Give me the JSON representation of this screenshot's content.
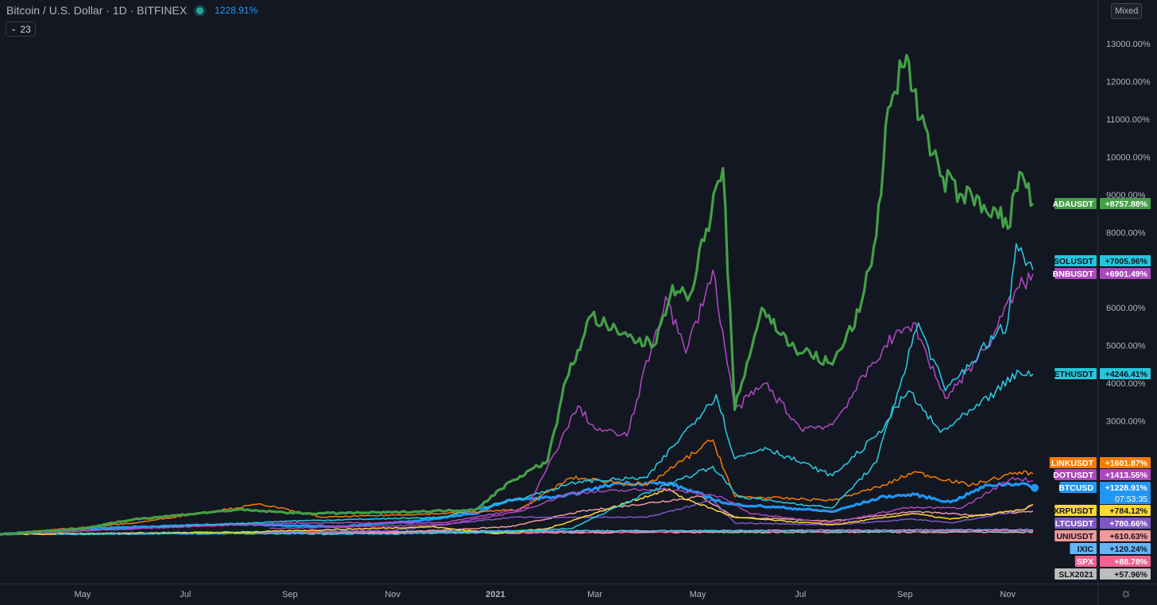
{
  "header": {
    "title": "Bitcoin / U.S. Dollar · 1D · BITFINEX",
    "change": "1228.91%",
    "indicator_count": "23",
    "scale_mode": "Mixed"
  },
  "chart_data": {
    "type": "line",
    "x_tick_labels": [
      "May",
      "Jul",
      "Sep",
      "Nov",
      "2021",
      "Mar",
      "May",
      "Jul",
      "Sep",
      "Nov"
    ],
    "y_tick_labels": [
      "3000.00%",
      "4000.00%",
      "5000.00%",
      "6000.00%",
      "8000.00%",
      "9000.00%",
      "10000.00%",
      "11000.00%",
      "12000.00%",
      "13000.00%"
    ],
    "y_ticks": [
      3000,
      4000,
      5000,
      6000,
      8000,
      9000,
      10000,
      11000,
      12000,
      13000
    ],
    "ylim": [
      -500,
      14000
    ],
    "x_range": [
      "2020-03-13",
      "2021-11-16"
    ],
    "grid": false,
    "countdown": "07:53:35",
    "series": [
      {
        "name": "ADAUSDT",
        "label": "+8757.88%",
        "color": "#43a047",
        "width": 3.2,
        "x": [
          "2020-03-13",
          "2020-05-01",
          "2020-06-01",
          "2020-08-01",
          "2020-09-10",
          "2020-11-01",
          "2020-12-20",
          "2021-01-10",
          "2021-02-01",
          "2021-02-12",
          "2021-02-27",
          "2021-03-15",
          "2021-04-05",
          "2021-04-16",
          "2021-04-25",
          "2021-05-16",
          "2021-05-23",
          "2021-06-08",
          "2021-06-25",
          "2021-07-20",
          "2021-08-05",
          "2021-08-15",
          "2021-08-22",
          "2021-09-02",
          "2021-09-10",
          "2021-09-22",
          "2021-10-05",
          "2021-10-25",
          "2021-11-01",
          "2021-11-08",
          "2021-11-16"
        ],
        "y": [
          0,
          150,
          400,
          650,
          550,
          580,
          650,
          1400,
          1950,
          4100,
          5800,
          5300,
          5000,
          6600,
          6200,
          9700,
          3300,
          6000,
          5000,
          4500,
          5900,
          7900,
          11300,
          12700,
          11000,
          9500,
          9000,
          8600,
          8100,
          9600,
          8758
        ]
      },
      {
        "name": "SOLUSDT",
        "label": "+7005.96%",
        "color": "#26c6da",
        "width": 1.6,
        "x": [
          "2020-04-15",
          "2020-08-01",
          "2020-11-01",
          "2021-01-01",
          "2021-02-15",
          "2021-04-01",
          "2021-05-10",
          "2021-05-25",
          "2021-06-20",
          "2021-07-20",
          "2021-08-15",
          "2021-09-09",
          "2021-09-25",
          "2021-10-15",
          "2021-11-01",
          "2021-11-06",
          "2021-11-16"
        ],
        "y": [
          0,
          20,
          10,
          60,
          150,
          1100,
          1800,
          1000,
          850,
          700,
          1900,
          5600,
          3800,
          4800,
          5600,
          7700,
          7006
        ]
      },
      {
        "name": "BNBUSDT",
        "label": "+6901.49%",
        "color": "#ab47bc",
        "width": 1.6,
        "x": [
          "2020-03-13",
          "2020-06-01",
          "2020-09-01",
          "2020-12-01",
          "2021-01-20",
          "2021-02-19",
          "2021-03-01",
          "2021-03-20",
          "2021-04-12",
          "2021-04-24",
          "2021-05-10",
          "2021-05-23",
          "2021-06-10",
          "2021-07-01",
          "2021-07-20",
          "2021-08-20",
          "2021-09-06",
          "2021-09-25",
          "2021-10-20",
          "2021-11-05",
          "2021-11-16"
        ],
        "y": [
          0,
          150,
          300,
          300,
          700,
          3400,
          2800,
          2600,
          6300,
          4800,
          7000,
          3300,
          4000,
          2800,
          2900,
          5000,
          5600,
          3600,
          5000,
          6400,
          6901
        ]
      },
      {
        "name": "ETHUSDT",
        "label": "+4246.41%",
        "color": "#26c6da",
        "width": 1.6,
        "x": [
          "2020-03-13",
          "2020-06-01",
          "2020-09-01",
          "2020-12-01",
          "2021-01-20",
          "2021-02-20",
          "2021-04-01",
          "2021-05-12",
          "2021-05-23",
          "2021-06-10",
          "2021-07-20",
          "2021-08-15",
          "2021-09-03",
          "2021-09-22",
          "2021-10-15",
          "2021-11-08",
          "2021-11-16"
        ],
        "y": [
          0,
          150,
          350,
          450,
          1000,
          1400,
          1500,
          3700,
          2000,
          2300,
          1550,
          2600,
          3800,
          2700,
          3400,
          4300,
          4246
        ]
      },
      {
        "name": "LINKUSDT",
        "label": "+1601.87%",
        "color": "#f57c00",
        "width": 1.5,
        "x": [
          "2020-03-13",
          "2020-06-01",
          "2020-08-15",
          "2020-09-20",
          "2020-12-01",
          "2021-01-15",
          "2021-02-15",
          "2021-04-01",
          "2021-05-10",
          "2021-05-23",
          "2021-07-20",
          "2021-08-20",
          "2021-09-06",
          "2021-10-10",
          "2021-11-08",
          "2021-11-16"
        ],
        "y": [
          0,
          300,
          800,
          450,
          550,
          650,
          1500,
          1300,
          2500,
          1000,
          900,
          1300,
          1650,
          1300,
          1650,
          1602
        ]
      },
      {
        "name": "DOTUSDT",
        "label": "+1413.55%",
        "color": "#ab47bc",
        "width": 1.5,
        "x": [
          "2020-08-20",
          "2020-10-01",
          "2020-12-01",
          "2021-01-15",
          "2021-02-15",
          "2021-04-10",
          "2021-05-15",
          "2021-06-01",
          "2021-07-20",
          "2021-09-01",
          "2021-10-05",
          "2021-11-04",
          "2021-11-16"
        ],
        "y": [
          150,
          200,
          250,
          600,
          1100,
          1200,
          1000,
          550,
          300,
          700,
          700,
          1500,
          1414
        ]
      },
      {
        "name": "BTCUSD",
        "label": "+1228.91%",
        "color": "#2196f3",
        "width": 3.2,
        "x": [
          "2020-03-13",
          "2020-05-01",
          "2020-08-01",
          "2020-10-01",
          "2020-11-15",
          "2020-12-20",
          "2021-01-08",
          "2021-02-10",
          "2021-03-14",
          "2021-04-14",
          "2021-05-19",
          "2021-06-22",
          "2021-07-20",
          "2021-08-20",
          "2021-09-07",
          "2021-09-28",
          "2021-10-20",
          "2021-11-10",
          "2021-11-16"
        ],
        "y": [
          0,
          150,
          270,
          200,
          350,
          550,
          900,
          1000,
          1350,
          1350,
          800,
          700,
          600,
          1000,
          1050,
          850,
          1300,
          1350,
          1229
        ]
      },
      {
        "name": "XRPUSDT",
        "label": "+784.12%",
        "color": "#fdd835",
        "width": 1.5,
        "x": [
          "2020-03-13",
          "2020-08-01",
          "2020-11-24",
          "2021-01-01",
          "2021-02-01",
          "2021-04-14",
          "2021-04-20",
          "2021-05-23",
          "2021-07-20",
          "2021-09-06",
          "2021-09-28",
          "2021-11-10",
          "2021-11-16"
        ],
        "y": [
          0,
          50,
          200,
          20,
          150,
          1200,
          1000,
          450,
          250,
          550,
          400,
          650,
          784
        ]
      },
      {
        "name": "LTCUSDT",
        "label": "+780.66%",
        "color": "#7e57c2",
        "width": 1.5,
        "x": [
          "2020-03-13",
          "2020-08-01",
          "2020-11-01",
          "2021-01-10",
          "2021-02-20",
          "2021-04-01",
          "2021-05-10",
          "2021-05-23",
          "2021-07-20",
          "2021-09-06",
          "2021-09-28",
          "2021-11-10",
          "2021-11-16"
        ],
        "y": [
          0,
          50,
          100,
          450,
          450,
          450,
          900,
          300,
          250,
          400,
          300,
          650,
          781
        ]
      },
      {
        "name": "UNIUSDT",
        "label": "+610.63%",
        "color": "#ef9a9a",
        "width": 1.5,
        "x": [
          "2020-09-20",
          "2020-11-01",
          "2021-01-10",
          "2021-02-20",
          "2021-05-03",
          "2021-05-23",
          "2021-07-20",
          "2021-09-06",
          "2021-10-15",
          "2021-11-16"
        ],
        "y": [
          0,
          50,
          200,
          600,
          1000,
          450,
          350,
          600,
          500,
          611
        ]
      },
      {
        "name": "IXIC",
        "label": "+120.24%",
        "color": "#64b5f6",
        "width": 1.5,
        "x": [
          "2020-03-13",
          "2020-08-01",
          "2021-01-01",
          "2021-06-01",
          "2021-11-16"
        ],
        "y": [
          0,
          60,
          85,
          100,
          120
        ]
      },
      {
        "name": "SPX",
        "label": "+88.78%",
        "color": "#f06292",
        "width": 1.5,
        "x": [
          "2020-03-13",
          "2020-08-01",
          "2021-01-01",
          "2021-06-01",
          "2021-11-16"
        ],
        "y": [
          0,
          40,
          60,
          75,
          89
        ]
      },
      {
        "name": "SLX2021",
        "label": "+57.96%",
        "color": "#bdbdbd",
        "width": 1.5,
        "x": [
          "2020-03-13",
          "2020-08-01",
          "2021-01-01",
          "2021-06-01",
          "2021-11-16"
        ],
        "y": [
          0,
          20,
          40,
          50,
          58
        ]
      }
    ]
  }
}
